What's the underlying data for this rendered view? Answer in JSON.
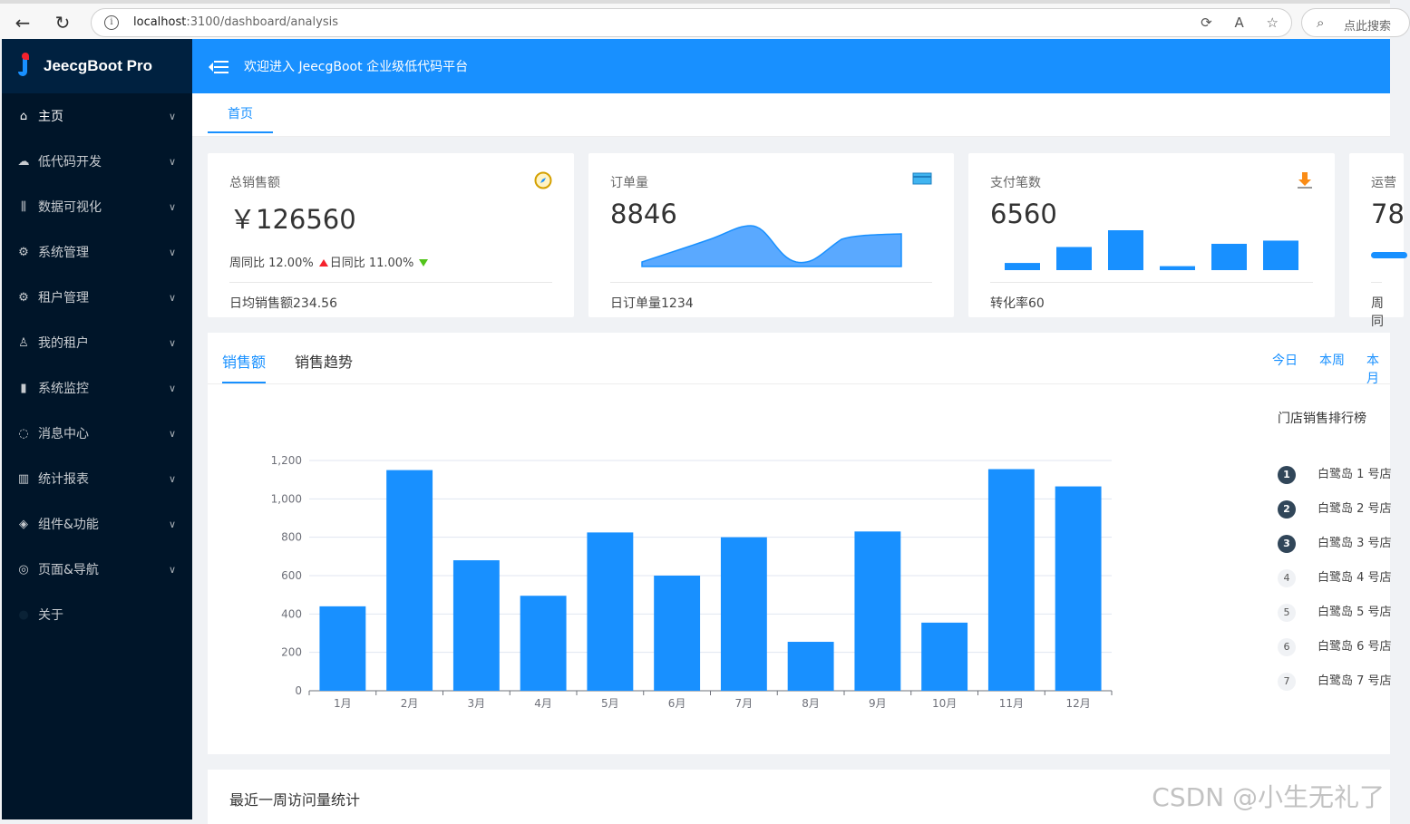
{
  "browser": {
    "url_host": "localhost",
    "url_path": ":3100/dashboard/analysis",
    "search_placeholder": "点此搜索"
  },
  "sidebar": {
    "logo": "JeecgBoot Pro",
    "items": [
      {
        "label": "主页",
        "icon": "home-icon",
        "glyph": "⌂",
        "active": true
      },
      {
        "label": "低代码开发",
        "icon": "cloud-icon",
        "glyph": "☁"
      },
      {
        "label": "数据可视化",
        "icon": "sliders-icon",
        "glyph": "⫼"
      },
      {
        "label": "系统管理",
        "icon": "gear-icon",
        "glyph": "⚙"
      },
      {
        "label": "租户管理",
        "icon": "gear-icon",
        "glyph": "⚙"
      },
      {
        "label": "我的租户",
        "icon": "user-icon",
        "glyph": "♙"
      },
      {
        "label": "系统监控",
        "icon": "camera-icon",
        "glyph": "▮"
      },
      {
        "label": "消息中心",
        "icon": "message-icon",
        "glyph": "◌"
      },
      {
        "label": "统计报表",
        "icon": "bar-chart-icon",
        "glyph": "▥"
      },
      {
        "label": "组件&功能",
        "icon": "layers-icon",
        "glyph": "◈"
      },
      {
        "label": "页面&导航",
        "icon": "compass-icon",
        "glyph": "◎"
      },
      {
        "label": "关于",
        "icon": "info-icon",
        "glyph": "●",
        "no_arrow": true
      }
    ]
  },
  "header": {
    "title": "欢迎进入 JeecgBoot 企业级低代码平台"
  },
  "tabs": {
    "home": "首页"
  },
  "cards": {
    "sales": {
      "label": "总销售额",
      "value": "￥126560",
      "week": "周同比 12.00%",
      "day": "日同比 11.00%",
      "footer": "日均销售额234.56"
    },
    "orders": {
      "label": "订单量",
      "value": "8846",
      "footer": "日订单量1234"
    },
    "payments": {
      "label": "支付笔数",
      "value": "6560",
      "footer": "转化率60",
      "bars": [
        0.18,
        0.58,
        1.0,
        0.1,
        0.66,
        0.74
      ]
    },
    "ops": {
      "label": "运营",
      "value": "78",
      "footer": "周同"
    }
  },
  "sales_panel": {
    "tab_sales": "销售额",
    "tab_trend": "销售趋势",
    "range_today": "今日",
    "range_week": "本周",
    "range_month": "本月",
    "rank_title": "门店销售排行榜",
    "ranking": [
      {
        "rank": "1",
        "name": "白鹭岛 1 号店"
      },
      {
        "rank": "2",
        "name": "白鹭岛 2 号店"
      },
      {
        "rank": "3",
        "name": "白鹭岛 3 号店"
      },
      {
        "rank": "4",
        "name": "白鹭岛 4 号店"
      },
      {
        "rank": "5",
        "name": "白鹭岛 5 号店"
      },
      {
        "rank": "6",
        "name": "白鹭岛 6 号店"
      },
      {
        "rank": "7",
        "name": "白鹭岛 7 号店"
      }
    ]
  },
  "chart_data": {
    "type": "bar",
    "categories": [
      "1月",
      "2月",
      "3月",
      "4月",
      "5月",
      "6月",
      "7月",
      "8月",
      "9月",
      "10月",
      "11月",
      "12月"
    ],
    "values": [
      440,
      1150,
      680,
      495,
      825,
      600,
      800,
      255,
      830,
      355,
      1155,
      1065
    ],
    "ylim": [
      0,
      1200
    ],
    "yticks": [
      0,
      200,
      400,
      600,
      800,
      1000,
      1200
    ],
    "ytick_labels": [
      "0",
      "200",
      "400",
      "600",
      "800",
      "1,000",
      "1,200"
    ],
    "color": "#1890ff",
    "grid": true
  },
  "bottom_panel": {
    "title": "最近一周访问量统计"
  },
  "watermark": "CSDN @小生无礼了"
}
